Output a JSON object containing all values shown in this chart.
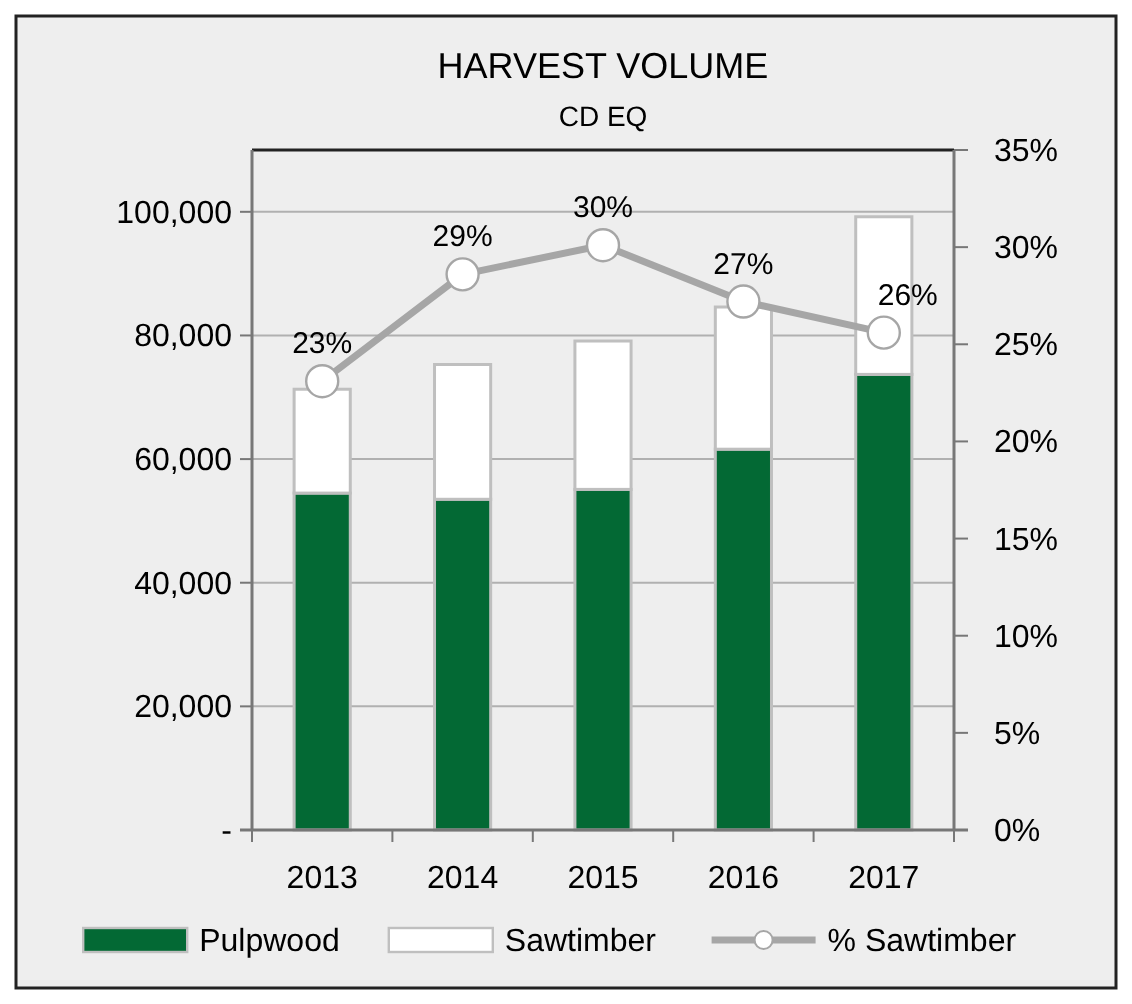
{
  "chart_data": {
    "type": "bar",
    "title": "HARVEST VOLUME",
    "subtitle": "CD EQ",
    "categories": [
      "2013",
      "2014",
      "2015",
      "2016",
      "2017"
    ],
    "stacked": true,
    "series": [
      {
        "name": "Pulpwood",
        "color": "#036934",
        "values": [
          54500,
          53500,
          55100,
          61600,
          73700
        ]
      },
      {
        "name": "Sawtimber",
        "color": "#ffffff",
        "values": [
          16800,
          21800,
          24000,
          23000,
          25500
        ]
      },
      {
        "name": "% Sawtimber",
        "type": "line",
        "axis": "y2",
        "color": "#a6a6a6",
        "marker": "circle",
        "values": [
          23.1,
          28.6,
          30.1,
          27.2,
          25.6
        ],
        "value_labels": [
          "23%",
          "29%",
          "30%",
          "27%",
          "26%"
        ]
      }
    ],
    "ylim": [
      0,
      110000
    ],
    "yticks": [
      {
        "value": 0,
        "label": "-"
      },
      {
        "value": 20000,
        "label": "20,000"
      },
      {
        "value": 40000,
        "label": "40,000"
      },
      {
        "value": 60000,
        "label": "60,000"
      },
      {
        "value": 80000,
        "label": "80,000"
      },
      {
        "value": 100000,
        "label": "100,000"
      }
    ],
    "y2lim": [
      0,
      35
    ],
    "y2ticks": [
      {
        "value": 0,
        "label": "0%"
      },
      {
        "value": 5,
        "label": "5%"
      },
      {
        "value": 10,
        "label": "10%"
      },
      {
        "value": 15,
        "label": "15%"
      },
      {
        "value": 20,
        "label": "20%"
      },
      {
        "value": 25,
        "label": "25%"
      },
      {
        "value": 30,
        "label": "30%"
      },
      {
        "value": 35,
        "label": "35%"
      }
    ],
    "grid": "y",
    "legend": "bottom"
  }
}
